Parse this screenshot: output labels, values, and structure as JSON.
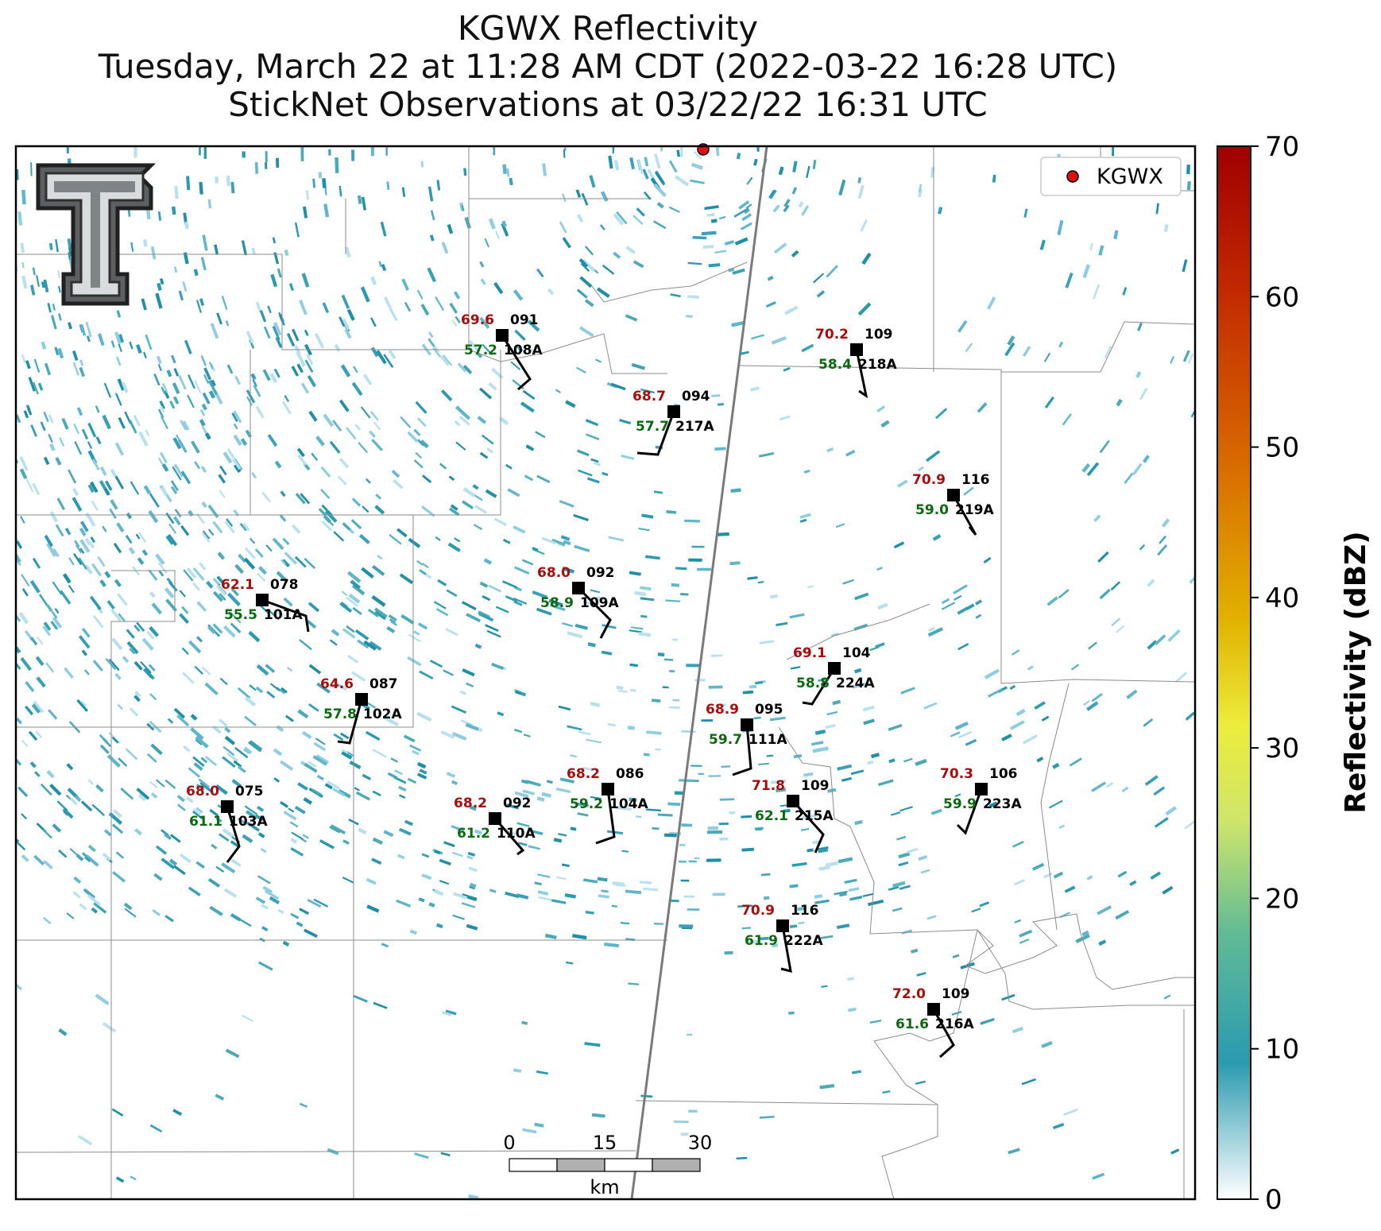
{
  "title": {
    "line1": "KGWX Reflectivity",
    "line2": "Tuesday, March 22 at 11:28 AM CDT (2022-03-22 16:28 UTC)",
    "line3": "StickNet Observations at 03/22/22 16:31 UTC"
  },
  "legend": {
    "label": "KGWX",
    "marker_color": "#e01010"
  },
  "colorbar": {
    "label": "Reflectivity (dBZ)",
    "min": 0,
    "max": 70,
    "ticks": [
      "0",
      "10",
      "20",
      "30",
      "40",
      "50",
      "60",
      "70"
    ],
    "colors": [
      "#ffffff",
      "#2a9ab0",
      "#6cc48a",
      "#ecf34a",
      "#e0b800",
      "#d86a00",
      "#b51500",
      "#a00000"
    ]
  },
  "scale_bar": {
    "ticks": [
      "0",
      "15",
      "30"
    ],
    "unit": "km"
  },
  "stations": [
    {
      "id": "108A",
      "temp": "69.6",
      "dew": "57.2",
      "dir": "091"
    },
    {
      "id": "218A",
      "temp": "70.2",
      "dew": "58.4",
      "dir": "109"
    },
    {
      "id": "217A",
      "temp": "68.7",
      "dew": "57.7",
      "dir": "094"
    },
    {
      "id": "219A",
      "temp": "70.9",
      "dew": "59.0",
      "dir": "116"
    },
    {
      "id": "109A",
      "temp": "68.0",
      "dew": "58.9",
      "dir": "092"
    },
    {
      "id": "101A",
      "temp": "62.1",
      "dew": "55.5",
      "dir": "078"
    },
    {
      "id": "224A",
      "temp": "69.1",
      "dew": "58.8",
      "dir": "104"
    },
    {
      "id": "102A",
      "temp": "64.6",
      "dew": "57.8",
      "dir": "087"
    },
    {
      "id": "111A",
      "temp": "68.9",
      "dew": "59.7",
      "dir": "095"
    },
    {
      "id": "104A",
      "temp": "68.2",
      "dew": "59.2",
      "dir": "086"
    },
    {
      "id": "215A",
      "temp": "71.8",
      "dew": "62.1",
      "dir": "109"
    },
    {
      "id": "223A",
      "temp": "70.3",
      "dew": "59.9",
      "dir": "106"
    },
    {
      "id": "103A",
      "temp": "68.0",
      "dew": "61.1",
      "dir": "075"
    },
    {
      "id": "110A",
      "temp": "68.2",
      "dew": "61.2",
      "dir": "092"
    },
    {
      "id": "222A",
      "temp": "70.9",
      "dew": "61.9",
      "dir": "116"
    },
    {
      "id": "216A",
      "temp": "72.0",
      "dew": "61.6",
      "dir": "109"
    }
  ]
}
